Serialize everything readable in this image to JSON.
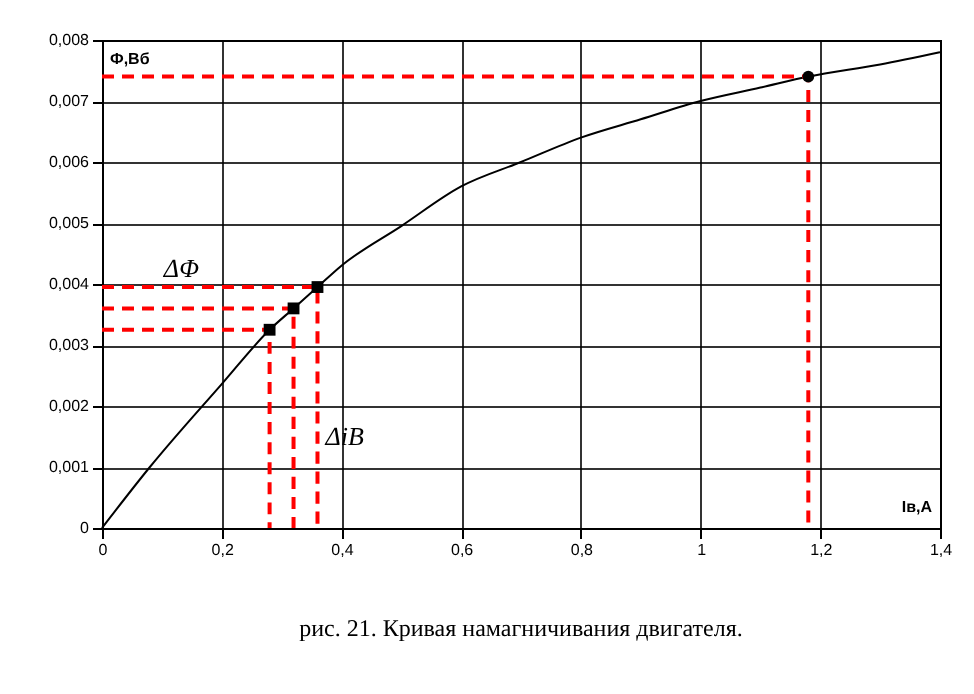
{
  "chart_data": {
    "type": "line",
    "title": "рис. 21.  Кривая намагничивания двигателя.",
    "xlabel": "Iв,А",
    "ylabel": "Ф,Вб",
    "xlim": [
      0,
      1.4
    ],
    "xticks": [
      0,
      {
        "value": 0.2,
        "label": "0,2"
      },
      {
        "value": 0.4,
        "label": "0,4"
      },
      {
        "value": 0.6,
        "label": "0,6"
      },
      {
        "value": 0.8,
        "label": "0,8"
      },
      1,
      {
        "value": 1.2,
        "label": "1,2"
      },
      {
        "value": 1.4,
        "label": "1,4"
      }
    ],
    "ylim": [
      0,
      0.008
    ],
    "yticks": [
      0,
      {
        "value": 0.001,
        "label": "0,001"
      },
      {
        "value": 0.002,
        "label": "0,002"
      },
      {
        "value": 0.003,
        "label": "0,003"
      },
      {
        "value": 0.004,
        "label": "0,004"
      },
      {
        "value": 0.005,
        "label": "0,005"
      },
      {
        "value": 0.006,
        "label": "0,006"
      },
      {
        "value": 0.007,
        "label": "0,007"
      },
      {
        "value": 0.008,
        "label": "0,008"
      }
    ],
    "grid": true,
    "series": [
      {
        "type": "line",
        "color": "#000000",
        "line_style": "solid",
        "marker": "none",
        "x": [
          0,
          0.08,
          0.2,
          0.28,
          0.32,
          0.36,
          0.4,
          0.5,
          0.6,
          0.7,
          0.8,
          0.9,
          1.0,
          1.1,
          1.18,
          1.3,
          1.4
        ],
        "values": [
          0,
          0.001,
          0.00236,
          0.00325,
          0.0036,
          0.00395,
          0.0043,
          0.00495,
          0.0056,
          0.006,
          0.0064,
          0.0067,
          0.007,
          0.00722,
          0.0074,
          0.0076,
          0.0078
        ]
      },
      {
        "type": "line",
        "color": "#ff0000",
        "line_style": "dashed",
        "marker": "none",
        "x": [
          0,
          0.28,
          0.28
        ],
        "values": [
          0.00325,
          0.00325,
          0
        ]
      },
      {
        "type": "line",
        "color": "#ff0000",
        "line_style": "dashed",
        "marker": "none",
        "x": [
          0,
          0.32,
          0.32
        ],
        "values": [
          0.0036,
          0.0036,
          0
        ]
      },
      {
        "type": "line",
        "color": "#ff0000",
        "line_style": "dashed",
        "marker": "none",
        "x": [
          0,
          0.36,
          0.36
        ],
        "values": [
          0.00395,
          0.00395,
          0
        ]
      },
      {
        "type": "line",
        "color": "#ff0000",
        "line_style": "dashed",
        "marker": "none",
        "x": [
          0,
          1.18,
          1.18
        ],
        "values": [
          0.0074,
          0.0074,
          0
        ]
      },
      {
        "type": "scatter",
        "color": "#000000",
        "marker": "square",
        "x": [
          0.28,
          0.32,
          0.36
        ],
        "values": [
          0.00325,
          0.0036,
          0.00395
        ]
      },
      {
        "type": "scatter",
        "color": "#000000",
        "marker": "circle",
        "x": [
          1.18
        ],
        "values": [
          0.0074
        ]
      }
    ],
    "annotations": [
      {
        "text": "ΔΦ",
        "x": 0.09,
        "y": 0.00395
      },
      {
        "text": "ΔiВ",
        "x": 0.36,
        "y": 0.0012
      }
    ]
  }
}
